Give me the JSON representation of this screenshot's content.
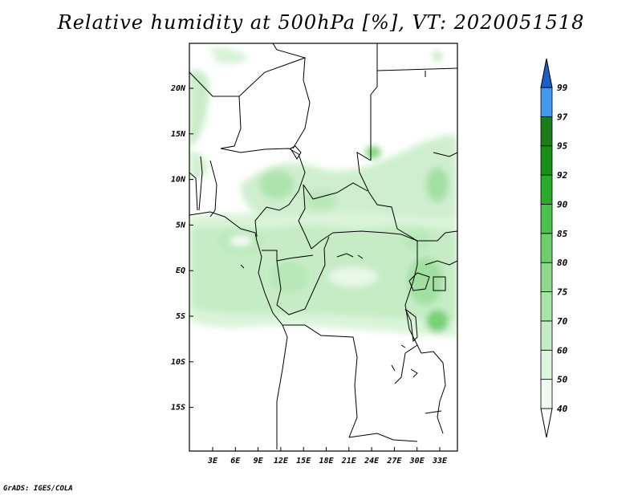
{
  "title": "Relative humidity at 500hPa [%], VT: 2020051518",
  "credit": "GrADS: IGES/COLA",
  "map": {
    "variable": "Relative humidity",
    "level": "500hPa",
    "unit": "%",
    "valid_time": "2020051518",
    "lat_labels": [
      "20N",
      "15N",
      "10N",
      "5N",
      "EQ",
      "5S",
      "10S",
      "15S"
    ],
    "lon_labels": [
      "3E",
      "6E",
      "9E",
      "12E",
      "15E",
      "18E",
      "21E",
      "24E",
      "27E",
      "30E",
      "33E"
    ]
  },
  "colorbar": {
    "labels": [
      "40",
      "50",
      "60",
      "70",
      "75",
      "80",
      "85",
      "90",
      "92",
      "95",
      "97",
      "99"
    ],
    "colors": [
      "#ffffff",
      "#eefbee",
      "#dcf5dc",
      "#c5edc5",
      "#a8e3a8",
      "#8fd98f",
      "#6ccf6c",
      "#4cc14c",
      "#2aab2a",
      "#189018",
      "#1a7d1a",
      "#4499ee",
      "#2a78e0",
      "#1a5fcc"
    ]
  },
  "colors": {
    "land_outline": "#000000",
    "frame": "#000000",
    "background": "#ffffff"
  }
}
